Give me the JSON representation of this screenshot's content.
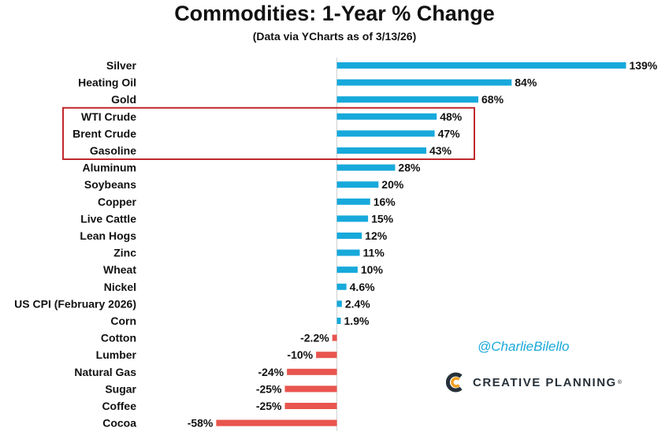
{
  "title": "Commodities: 1-Year % Change",
  "subtitle": "(Data via YCharts as of 3/13/26)",
  "handle": "@CharlieBilello",
  "brand": {
    "name": "CREATIVE PLANNING",
    "trademark": "®"
  },
  "colors": {
    "positive": "#17a9db",
    "negative": "#e8554e",
    "highlight_box": "#c0282d",
    "handle": "#19a9d9"
  },
  "highlight": {
    "from": "WTI Crude",
    "to": "Gasoline"
  },
  "chart_data": {
    "type": "bar",
    "orientation": "horizontal",
    "grid": false,
    "unit": "%",
    "categories": [
      "Silver",
      "Heating Oil",
      "Gold",
      "WTI Crude",
      "Brent Crude",
      "Gasoline",
      "Aluminum",
      "Soybeans",
      "Copper",
      "Live Cattle",
      "Lean Hogs",
      "Zinc",
      "Wheat",
      "Nickel",
      "US CPI (February 2026)",
      "Corn",
      "Cotton",
      "Lumber",
      "Natural Gas",
      "Sugar",
      "Coffee",
      "Cocoa"
    ],
    "values": [
      139,
      84,
      68,
      48,
      47,
      43,
      28,
      20,
      16,
      15,
      12,
      11,
      10,
      4.6,
      2.4,
      1.9,
      -2.2,
      -10,
      -24,
      -25,
      -25,
      -58
    ],
    "labels": [
      "139%",
      "84%",
      "68%",
      "48%",
      "47%",
      "43%",
      "28%",
      "20%",
      "16%",
      "15%",
      "12%",
      "11%",
      "10%",
      "4.6%",
      "2.4%",
      "1.9%",
      "-2.2%",
      "-10%",
      "-24%",
      "-25%",
      "-25%",
      "-58%"
    ]
  }
}
